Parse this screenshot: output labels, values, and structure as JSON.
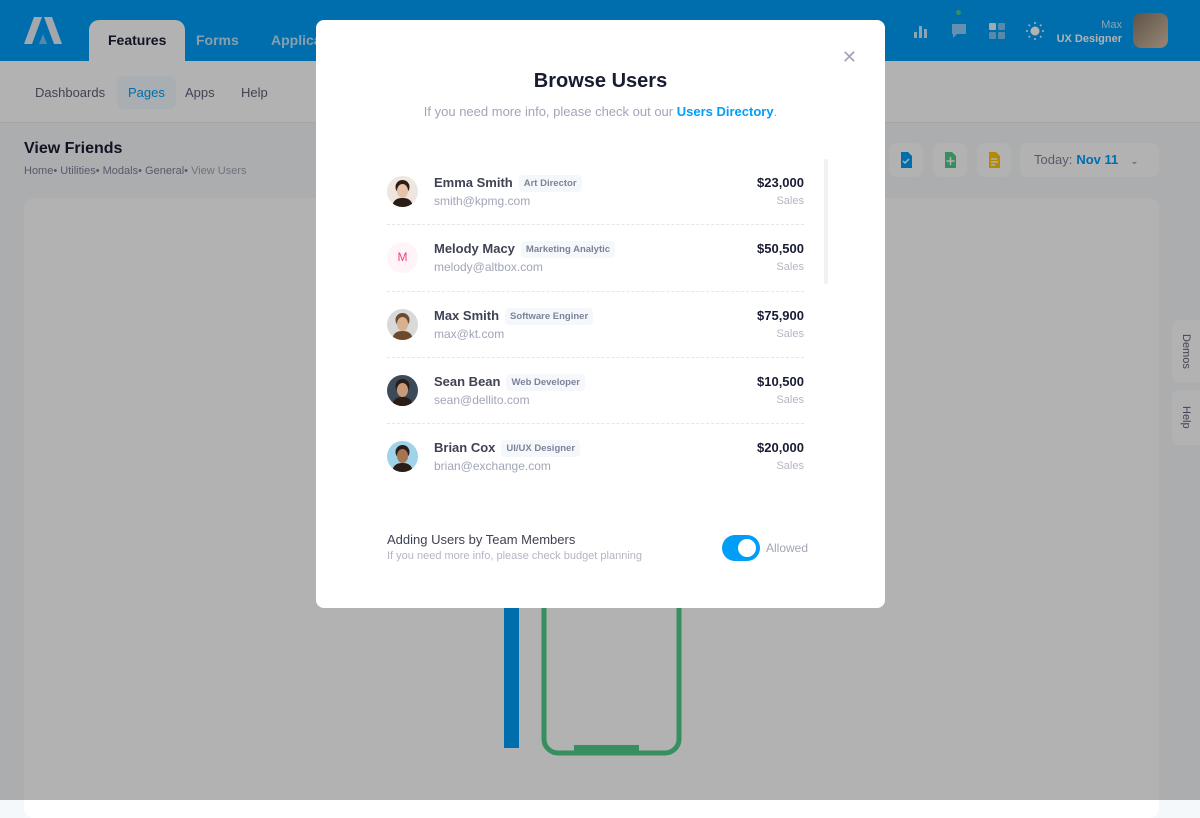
{
  "header": {
    "tabs": [
      "Features",
      "Forms",
      "Applications"
    ],
    "user_name": "Max",
    "user_role": "UX Designer",
    "accent": "#009ef7"
  },
  "subnav": [
    "Dashboards",
    "Pages",
    "Apps",
    "Help"
  ],
  "page": {
    "title": "View Friends",
    "breadcrumb": [
      "Home",
      "Utilities",
      "Modals",
      "General",
      "View Users"
    ],
    "date_label": "Today:",
    "date_value": "Nov 11"
  },
  "side_tabs": [
    "Demos",
    "Help"
  ],
  "modal": {
    "title": "Browse Users",
    "subtitle": "If you need more info, please check out our",
    "link": "Users Directory",
    "users": [
      {
        "name": "Emma Smith",
        "role": "Art Director",
        "email": "smith@kpmg.com",
        "amount": "$23,000",
        "label": "Sales",
        "avatar": "photo"
      },
      {
        "name": "Melody Macy",
        "role": "Marketing Analytic",
        "email": "melody@altbox.com",
        "amount": "$50,500",
        "label": "Sales",
        "avatar": "M"
      },
      {
        "name": "Max Smith",
        "role": "Software Enginer",
        "email": "max@kt.com",
        "amount": "$75,900",
        "label": "Sales",
        "avatar": "photo"
      },
      {
        "name": "Sean Bean",
        "role": "Web Developer",
        "email": "sean@dellito.com",
        "amount": "$10,500",
        "label": "Sales",
        "avatar": "photo"
      },
      {
        "name": "Brian Cox",
        "role": "UI/UX Designer",
        "email": "brian@exchange.com",
        "amount": "$20,000",
        "label": "Sales",
        "avatar": "photo"
      }
    ],
    "footer_title": "Adding Users by Team Members",
    "footer_sub": "If you need more info, please check budget planning",
    "toggle_label": "Allowed",
    "toggle_on": true
  }
}
